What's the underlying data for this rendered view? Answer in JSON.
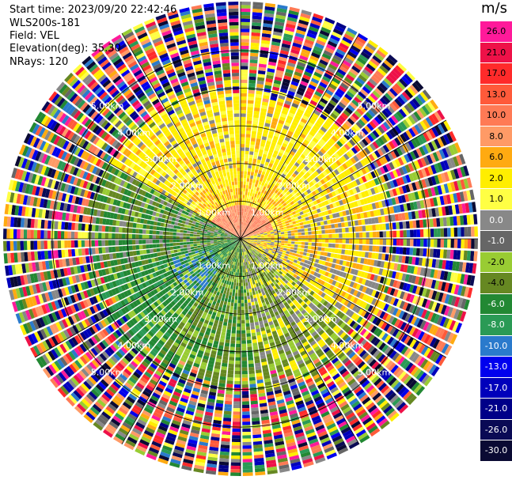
{
  "header": {
    "start_time": "Start time: 2023/09/20 22:42:46",
    "station": "WLS200s-181",
    "field": "Field: VEL",
    "elevation": "Elevation(deg): 35.30",
    "nrays": "NRays: 120"
  },
  "colorbar": {
    "unit": "m/s",
    "levels": [
      {
        "label": "26.0",
        "color": "#ff1a9a"
      },
      {
        "label": "21.0",
        "color": "#ee1148"
      },
      {
        "label": "17.0",
        "color": "#ff2a2a"
      },
      {
        "label": "13.0",
        "color": "#ff5a3a"
      },
      {
        "label": "10.0",
        "color": "#ff7a55"
      },
      {
        "label": "8.0",
        "color": "#ff9a66"
      },
      {
        "label": "6.0",
        "color": "#ffaa11"
      },
      {
        "label": "2.0",
        "color": "#ffee00"
      },
      {
        "label": "1.0",
        "color": "#ffff44"
      },
      {
        "label": "0.0",
        "color": "#888888"
      },
      {
        "label": "-1.0",
        "color": "#666666"
      },
      {
        "label": "-2.0",
        "color": "#99cc33"
      },
      {
        "label": "-4.0",
        "color": "#668822"
      },
      {
        "label": "-6.0",
        "color": "#228833"
      },
      {
        "label": "-8.0",
        "color": "#2a9a55"
      },
      {
        "label": "-10.0",
        "color": "#2a7acc"
      },
      {
        "label": "-13.0",
        "color": "#0000ee"
      },
      {
        "label": "-17.0",
        "color": "#0000bb"
      },
      {
        "label": "-21.0",
        "color": "#000088"
      },
      {
        "label": "-26.0",
        "color": "#0a0a55"
      },
      {
        "label": "-30.0",
        "color": "#0a0a33"
      }
    ]
  },
  "chart_data": {
    "type": "heatmap",
    "title": "",
    "field": "VEL",
    "units": "m/s",
    "nrays": 120,
    "elevation_deg": 35.3,
    "range_rings_km": [
      1.0,
      2.0,
      3.0,
      4.0,
      5.0
    ],
    "ring_labels": [
      "1.00km",
      "2.00km",
      "3.00km",
      "4.00km",
      "5.00km"
    ],
    "max_range_km": 6.3,
    "spokes_deg": [
      0,
      30,
      60,
      90,
      120,
      150,
      180,
      210,
      240,
      270,
      300,
      330
    ],
    "description": "PPI radial velocity; warm (positive) values north, cool (negative) values south-west, noisy multicolour beyond ~4.2 km"
  }
}
